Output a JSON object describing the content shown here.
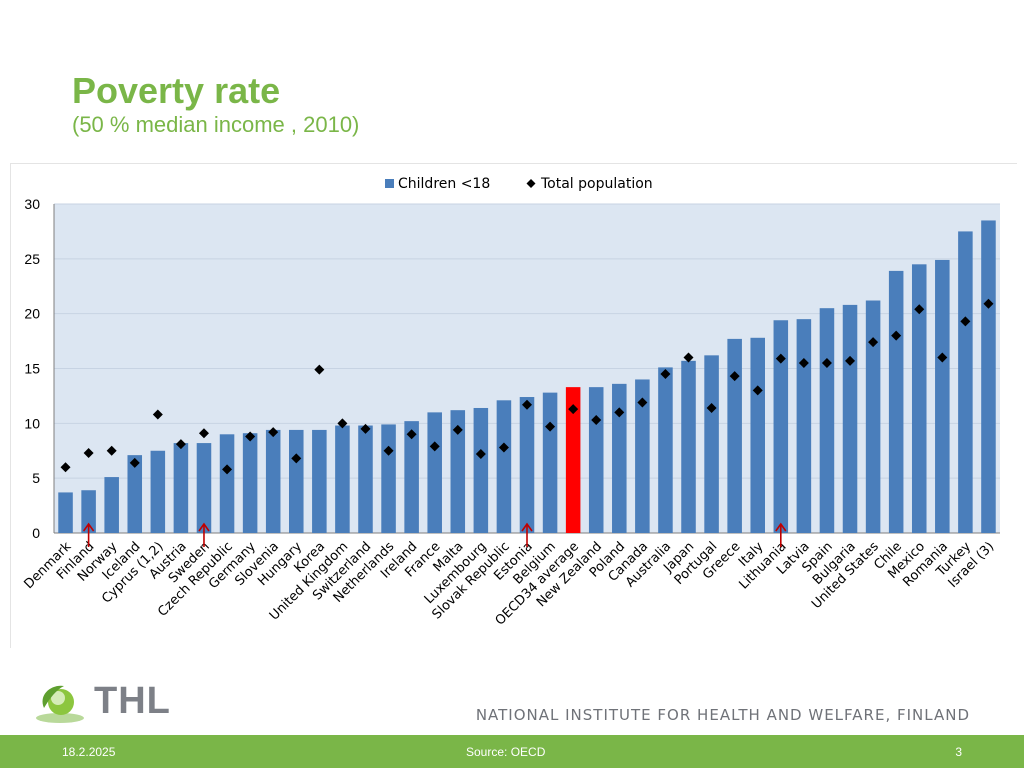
{
  "slide": {
    "title": "Poverty rate",
    "subtitle": "(50 % median income , 2010)",
    "logo_text": "THL",
    "institute": "NATIONAL INSTITUTE FOR HEALTH AND WELFARE, FINLAND",
    "date": "18.2.2025",
    "source": "Source: OECD",
    "page": "3"
  },
  "colors": {
    "accent": "#7ab648",
    "bar": "#4a7ebb",
    "highlight_bar": "#ff0000",
    "marker": "#000000",
    "arrow": "#c00000",
    "plot_bg": "#dce6f2"
  },
  "chart_data": {
    "type": "bar",
    "title": "",
    "xlabel": "",
    "ylabel": "",
    "ylim": [
      0,
      30
    ],
    "yticks": [
      0,
      5,
      10,
      15,
      20,
      25,
      30
    ],
    "legend": [
      "Children <18",
      "Total population"
    ],
    "legend_position": "top-center",
    "categories": [
      "Denmark",
      "Finland",
      "Norway",
      "Iceland",
      "Cyprus (1,2)",
      "Austria",
      "Sweden",
      "Czech Republic",
      "Germany",
      "Slovenia",
      "Hungary",
      "Korea",
      "United Kingdom",
      "Switzerland",
      "Netherlands",
      "Ireland",
      "France",
      "Malta",
      "Luxembourg",
      "Slovak Republic",
      "Estonia",
      "Belgium",
      "OECD34 average",
      "New Zealand",
      "Poland",
      "Canada",
      "Australia",
      "Japan",
      "Portugal",
      "Greece",
      "Italy",
      "Lithuania",
      "Latvia",
      "Spain",
      "Bulgaria",
      "United States",
      "Chile",
      "Mexico",
      "Romania",
      "Turkey",
      "Israel (3)"
    ],
    "series": [
      {
        "name": "Children <18",
        "kind": "bar",
        "values": [
          3.7,
          3.9,
          5.1,
          7.1,
          7.5,
          8.2,
          8.2,
          9.0,
          9.1,
          9.4,
          9.4,
          9.4,
          9.8,
          9.8,
          9.9,
          10.2,
          11.0,
          11.2,
          11.4,
          12.1,
          12.4,
          12.8,
          13.3,
          13.3,
          13.6,
          14.0,
          15.1,
          15.7,
          16.2,
          17.7,
          17.8,
          19.4,
          19.5,
          20.5,
          20.8,
          21.2,
          23.9,
          24.5,
          24.9,
          27.5,
          28.5
        ]
      },
      {
        "name": "Total population",
        "kind": "marker",
        "values": [
          6.0,
          7.3,
          7.5,
          6.4,
          10.8,
          8.1,
          9.1,
          5.8,
          8.8,
          9.2,
          6.8,
          14.9,
          10.0,
          9.5,
          7.5,
          9.0,
          7.9,
          9.4,
          7.2,
          7.8,
          11.7,
          9.7,
          11.3,
          10.3,
          11.0,
          11.9,
          14.5,
          16.0,
          11.4,
          14.3,
          13.0,
          15.9,
          15.5,
          15.5,
          15.7,
          17.4,
          18.0,
          20.4,
          16.0,
          19.3,
          20.9
        ]
      }
    ],
    "highlight_category": "OECD34 average",
    "arrow_annotations": [
      "Finland",
      "Sweden",
      "Estonia",
      "Lithuania"
    ]
  }
}
